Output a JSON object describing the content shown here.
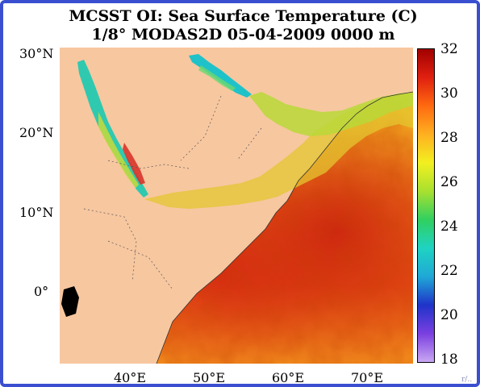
{
  "title": {
    "line1": "MCSST OI:  Sea Surface Temperature (C)",
    "line2": "1/8° MODAS2D 05-04-2009 0000 m"
  },
  "map": {
    "lat_labels": [
      "30°N",
      "20°N",
      "10°N",
      "0°"
    ],
    "lon_labels": [
      "40°E",
      "50°E",
      "60°E",
      "70°E"
    ],
    "land_color": "#f7c7a0",
    "region": "Arabian Sea"
  },
  "colorbar": {
    "min": 18,
    "max": 32,
    "tick_labels": [
      "32",
      "30",
      "28",
      "26",
      "24",
      "22",
      "20",
      "18"
    ],
    "colors": [
      "#c9a7f2",
      "#7a3fe0",
      "#1f33c9",
      "#1fa8d6",
      "#1fd3c2",
      "#30d060",
      "#a8e030",
      "#f2f020",
      "#ffb020",
      "#ff6a10",
      "#e02010",
      "#a00000"
    ]
  },
  "corner_mark": "r/.."
}
